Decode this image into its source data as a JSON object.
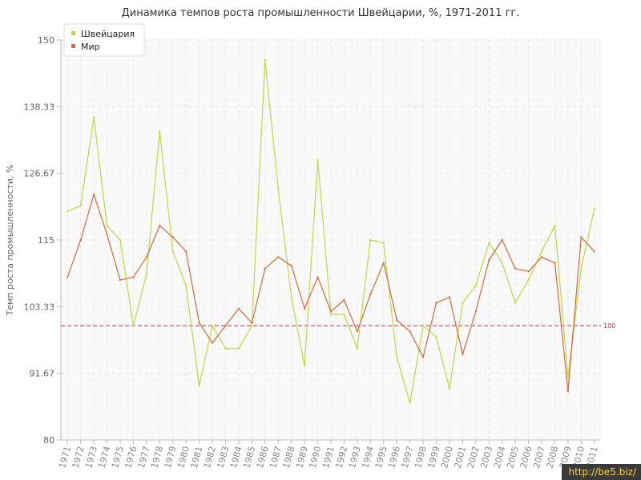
{
  "chart_data": {
    "type": "line",
    "title": "Динамика темпов роста промышленности Швейцарии, %, 1971-2011 гг.",
    "xlabel": "",
    "ylabel": "Темп роста промышленности, %",
    "ylim": [
      80,
      150
    ],
    "yticks": [
      "150",
      "138.33",
      "126.67",
      "115",
      "103.33",
      "91.67",
      "80"
    ],
    "categories": [
      "1971",
      "1972",
      "1973",
      "1974",
      "1975",
      "1976",
      "1977",
      "1978",
      "1979",
      "1980",
      "1981",
      "1982",
      "1983",
      "1984",
      "1985",
      "1986",
      "1987",
      "1988",
      "1989",
      "1990",
      "1991",
      "1992",
      "1993",
      "1994",
      "1995",
      "1996",
      "1997",
      "1998",
      "1999",
      "2000",
      "2001",
      "2002",
      "2003",
      "2004",
      "2005",
      "2006",
      "2007",
      "2008",
      "2009",
      "2010",
      "2011"
    ],
    "series": [
      {
        "name": "Швейцария",
        "color": "#bcd942",
        "values": [
          120,
          121,
          136.5,
          117.5,
          115,
          100,
          109,
          134,
          113,
          107,
          89.5,
          100,
          96,
          96,
          100,
          146.5,
          124,
          105,
          93,
          129,
          102,
          102,
          96,
          115,
          114.5,
          94.5,
          86.5,
          100,
          98,
          89,
          104,
          107,
          114.5,
          111,
          104,
          108,
          113,
          117.5,
          91,
          110,
          120.5
        ]
      },
      {
        "name": "Мир",
        "color": "#d9673a",
        "values": [
          108.5,
          115,
          123,
          116,
          108,
          108.5,
          112,
          117.5,
          115.5,
          113,
          100.5,
          97,
          100,
          103,
          100.5,
          110,
          112,
          110.5,
          103,
          108.5,
          102.5,
          104.5,
          99,
          105.5,
          111,
          101,
          99,
          94.5,
          104,
          105,
          95,
          102.5,
          111.5,
          115,
          110,
          109.5,
          112,
          111,
          88.5,
          115.5,
          113
        ]
      }
    ],
    "reference_line": {
      "value": 100,
      "label": "100",
      "color": "#a8334a"
    },
    "grid": true,
    "legend_position": "top-left",
    "watermark": "http://be5.biz/"
  }
}
